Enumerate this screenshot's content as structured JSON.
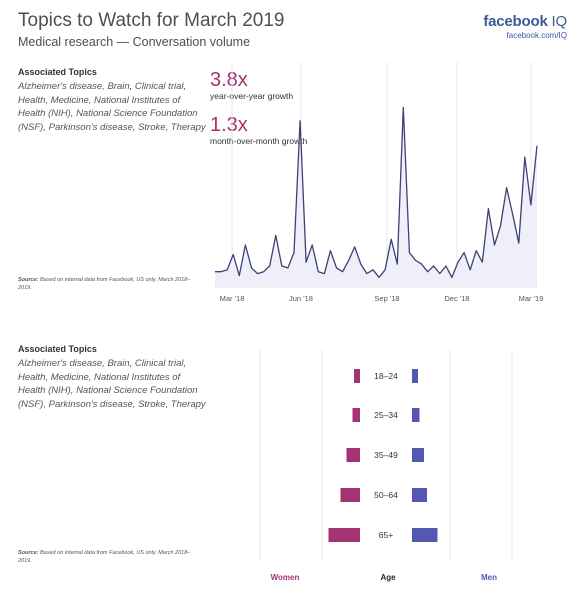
{
  "header": {
    "title": "Topics to Watch for March 2019",
    "subtitle": "Medical research — Conversation volume",
    "brand_logo": "facebook",
    "brand_logo_suffix": " IQ",
    "brand_url": "facebook.com/IQ"
  },
  "topics_top": {
    "heading": "Associated Topics",
    "list": "Alzheimer's disease, Brain, Clinical trial, Health, Medicine, National Institutes of Health (NIH), National Science Foundation (NSF), Parkinson's disease, Stroke, Therapy"
  },
  "topics_bottom": {
    "heading": "Associated Topics",
    "list": "Alzheimer's disease, Brain, Clinical trial, Health, Medicine, National Institutes of Health (NIH), National Science Foundation (NSF), Parkinson's disease, Stroke, Therapy"
  },
  "source_top": {
    "label": "Source:",
    "text": "Based on internal data from Facebook, US only. March 2018–2019."
  },
  "source_bottom": {
    "label": "Source:",
    "text": "Based on internal data from Facebook, US only. March 2018–2019."
  },
  "stats": [
    {
      "value": "3.8x",
      "label": "year-over-year growth"
    },
    {
      "value": "1.3x",
      "label": "month-over-month growth"
    }
  ],
  "colors": {
    "line": "#3e4077",
    "area": "#eeeff8",
    "women": "#a33373",
    "men": "#5359b3",
    "grid": "#e6e6e6"
  },
  "chart_data": [
    {
      "type": "area",
      "x_tick_labels": [
        "Mar '18",
        "Jun '18",
        "Sep '18",
        "Dec '18",
        "Mar '19"
      ],
      "ylim": [
        0,
        100
      ],
      "grid": "vertical lines at ticks",
      "series": [
        {
          "values": [
            8,
            8,
            9,
            17,
            6,
            22,
            10,
            7,
            8,
            11,
            27,
            11,
            10,
            18,
            87,
            13,
            22,
            8,
            7,
            19,
            10,
            8,
            14,
            21,
            12,
            7,
            9,
            5,
            9,
            25,
            12,
            94,
            18,
            14,
            12,
            8,
            11,
            7,
            11,
            5,
            13,
            18,
            9,
            19,
            13,
            41,
            22,
            32,
            52,
            38,
            23,
            68,
            43,
            74
          ]
        }
      ]
    },
    {
      "type": "bar",
      "categories": [
        "18–24",
        "25–34",
        "35–49",
        "50–64",
        "65+"
      ],
      "series": [
        {
          "name": "Women",
          "values": [
            4,
            5,
            9,
            13,
            21
          ]
        },
        {
          "name": "Men",
          "values": [
            4,
            5,
            8,
            10,
            17
          ]
        }
      ],
      "xlabel": "Age",
      "legend": "bottom"
    }
  ]
}
